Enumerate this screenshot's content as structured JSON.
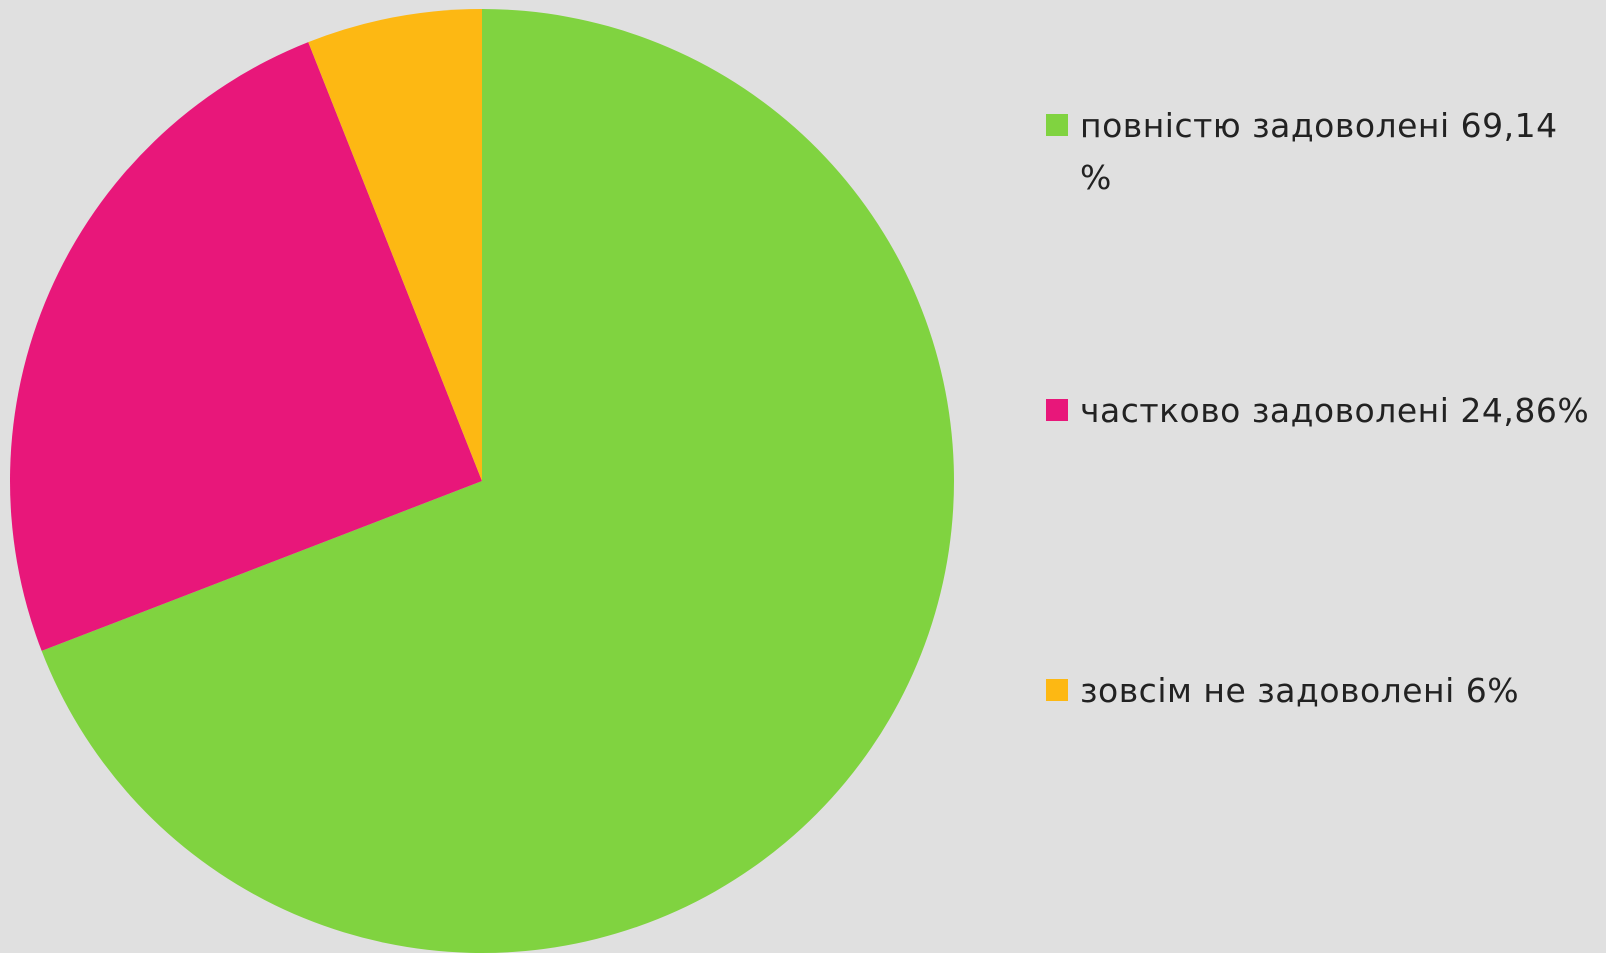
{
  "chart_data": {
    "type": "pie",
    "categories": [
      " повністю задоволені 69,14 %",
      "частково задоволені 24,86%",
      "зовсім не задоволені 6%"
    ],
    "values": [
      69.14,
      24.86,
      6
    ],
    "colors": [
      "#80d340",
      "#e8177a",
      "#fdb813"
    ],
    "start_angle": 0,
    "direction": "clockwise",
    "legend": "right"
  }
}
